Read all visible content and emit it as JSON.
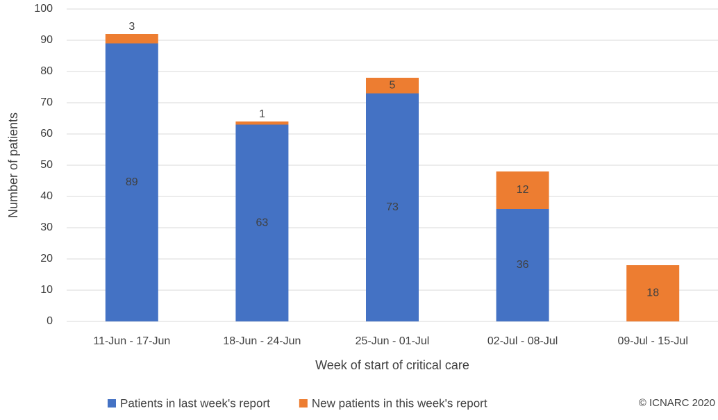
{
  "chart_data": {
    "type": "stacked_bar",
    "x_label": "Week of start of critical care",
    "y_label": "Number of patients",
    "annotation": "© ICNARC 2020",
    "categories": [
      "11-Jun - 17-Jun",
      "18-Jun - 24-Jun",
      "25-Jun - 01-Jul",
      "02-Jul - 08-Jul",
      "09-Jul - 15-Jul"
    ],
    "series": [
      {
        "name": "Patients in last week's report",
        "color": "#4472c4",
        "values": [
          89,
          63,
          73,
          36,
          null
        ]
      },
      {
        "name": "New patients in this week's report",
        "color": "#ed7d31",
        "values": [
          3,
          1,
          5,
          12,
          18
        ]
      }
    ],
    "ylim": [
      0,
      100
    ],
    "yticks": [
      0,
      10,
      20,
      30,
      40,
      50,
      60,
      70,
      80,
      90,
      100
    ],
    "grid": true
  }
}
